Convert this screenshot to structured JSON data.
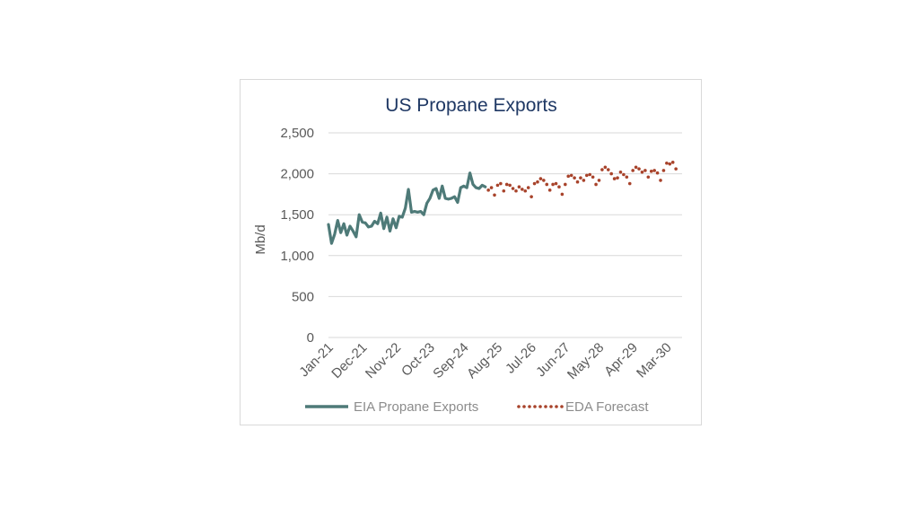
{
  "chart_data": {
    "type": "line",
    "title": "US Propane Exports",
    "ylabel": "Mb/d",
    "xlabel": "",
    "ylim": [
      0,
      2500
    ],
    "yticks": [
      "0",
      "500",
      "1,000",
      "1,500",
      "2,000",
      "2,500"
    ],
    "ytick_values": [
      0,
      500,
      1000,
      1500,
      2000,
      2500
    ],
    "grid": true,
    "legend_position": "bottom",
    "colors": {
      "actual": "#4e7a78",
      "forecast": "#a8432b"
    },
    "xtick_labels": [
      "Jan-21",
      "Dec-21",
      "Nov-22",
      "Oct-23",
      "Sep-24",
      "Aug-25",
      "Jul-26",
      "Jun-27",
      "May-28",
      "Apr-29",
      "Mar-30"
    ],
    "xtick_months": [
      0,
      11,
      22,
      33,
      44,
      55,
      66,
      77,
      88,
      99,
      110
    ],
    "series": [
      {
        "name": "EIA Propane Exports",
        "style": "solid",
        "start_month": 0,
        "values": [
          1380,
          1150,
          1260,
          1430,
          1280,
          1390,
          1250,
          1360,
          1300,
          1230,
          1500,
          1410,
          1400,
          1350,
          1360,
          1420,
          1390,
          1520,
          1330,
          1470,
          1300,
          1450,
          1340,
          1480,
          1470,
          1580,
          1810,
          1530,
          1540,
          1530,
          1540,
          1500,
          1640,
          1700,
          1800,
          1820,
          1700,
          1850,
          1700,
          1690,
          1700,
          1720,
          1650,
          1830,
          1850,
          1830,
          2010,
          1870,
          1830,
          1820,
          1860,
          1840
        ]
      },
      {
        "name": "EDA Forecast",
        "style": "dotted",
        "start_month": 52,
        "values": [
          1800,
          1830,
          1740,
          1860,
          1880,
          1790,
          1870,
          1860,
          1820,
          1790,
          1840,
          1810,
          1790,
          1830,
          1720,
          1880,
          1900,
          1940,
          1920,
          1870,
          1800,
          1870,
          1880,
          1840,
          1750,
          1870,
          1970,
          1980,
          1950,
          1900,
          1950,
          1920,
          1980,
          1990,
          1960,
          1870,
          1920,
          2050,
          2080,
          2050,
          2000,
          1940,
          1950,
          2020,
          1990,
          1960,
          1880,
          2040,
          2080,
          2060,
          2020,
          2040,
          1960,
          2030,
          2040,
          2010,
          1920,
          2040,
          2130,
          2120,
          2140,
          2060
        ]
      }
    ]
  }
}
